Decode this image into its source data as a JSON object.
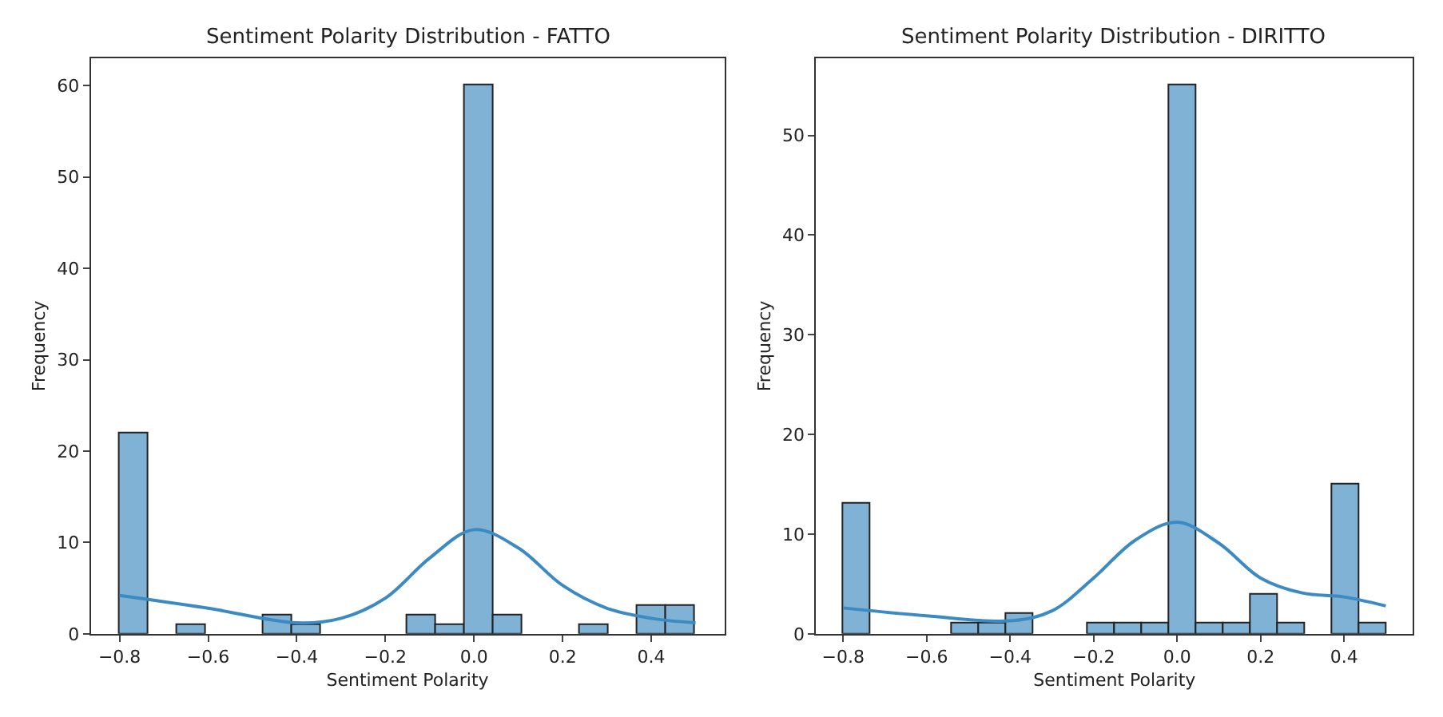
{
  "chart_data": [
    {
      "type": "histogram",
      "title": "Sentiment Polarity Distribution - FATTO",
      "xlabel": "Sentiment Polarity",
      "ylabel": "Frequency",
      "xlim": [
        -0.865,
        0.565
      ],
      "ylim": [
        0,
        63
      ],
      "xticks": [
        {
          "value": -0.8,
          "label": "−0.8"
        },
        {
          "value": -0.6,
          "label": "−0.6"
        },
        {
          "value": -0.4,
          "label": "−0.4"
        },
        {
          "value": -0.2,
          "label": "−0.2"
        },
        {
          "value": 0,
          "label": "0.0"
        },
        {
          "value": 0.2,
          "label": "0.2"
        },
        {
          "value": 0.4,
          "label": "0.4"
        }
      ],
      "yticks": [
        0,
        10,
        20,
        30,
        40,
        50,
        60
      ],
      "series": [
        {
          "color": "#7fb2d5",
          "bins": [
            -0.8,
            -0.735,
            -0.67,
            -0.605,
            -0.54,
            -0.475,
            -0.41,
            -0.345,
            -0.28,
            -0.215,
            -0.15,
            -0.085,
            -0.02,
            0.045,
            0.11,
            0.175,
            0.24,
            0.305,
            0.37,
            0.435,
            0.5
          ],
          "values": [
            22,
            0,
            1,
            0,
            0,
            2,
            1,
            0,
            0,
            0,
            2,
            1,
            60,
            2,
            0,
            0,
            1,
            0,
            3,
            3
          ]
        },
        {
          "type": "line",
          "color": "#3b8bc2",
          "x": [
            -0.8,
            -0.6,
            -0.4,
            -0.3,
            -0.2,
            -0.1,
            0,
            0.1,
            0.2,
            0.3,
            0.4,
            0.5
          ],
          "values": [
            4.2,
            2.8,
            1.2,
            1.7,
            3.9,
            8.3,
            11.4,
            9.4,
            5.3,
            2.8,
            1.7,
            1.2
          ]
        }
      ]
    },
    {
      "type": "histogram",
      "title": "Sentiment Polarity Distribution - DIRITTO",
      "xlabel": "Sentiment Polarity",
      "ylabel": "Frequency",
      "xlim": [
        -0.865,
        0.565
      ],
      "ylim": [
        0,
        57.75
      ],
      "xticks": [
        {
          "value": -0.8,
          "label": "−0.8"
        },
        {
          "value": -0.6,
          "label": "−0.6"
        },
        {
          "value": -0.4,
          "label": "−0.4"
        },
        {
          "value": -0.2,
          "label": "−0.2"
        },
        {
          "value": 0,
          "label": "0.0"
        },
        {
          "value": 0.2,
          "label": "0.2"
        },
        {
          "value": 0.4,
          "label": "0.4"
        }
      ],
      "yticks": [
        0,
        10,
        20,
        30,
        40,
        50
      ],
      "series": [
        {
          "color": "#7fb2d5",
          "bins": [
            -0.8,
            -0.735,
            -0.67,
            -0.605,
            -0.54,
            -0.475,
            -0.41,
            -0.345,
            -0.28,
            -0.215,
            -0.15,
            -0.085,
            -0.02,
            0.045,
            0.11,
            0.175,
            0.24,
            0.305,
            0.37,
            0.435,
            0.5
          ],
          "values": [
            13,
            0,
            0,
            0,
            1,
            1,
            2,
            0,
            0,
            1,
            1,
            1,
            55,
            1,
            1,
            4,
            1,
            0,
            15,
            1
          ]
        },
        {
          "type": "line",
          "color": "#3b8bc2",
          "x": [
            -0.8,
            -0.6,
            -0.4,
            -0.3,
            -0.2,
            -0.1,
            0,
            0.1,
            0.2,
            0.3,
            0.4,
            0.5
          ],
          "values": [
            2.6,
            1.8,
            1.3,
            2.3,
            5.6,
            9.4,
            11.2,
            9.1,
            5.6,
            4.1,
            3.7,
            2.8
          ]
        }
      ]
    }
  ]
}
